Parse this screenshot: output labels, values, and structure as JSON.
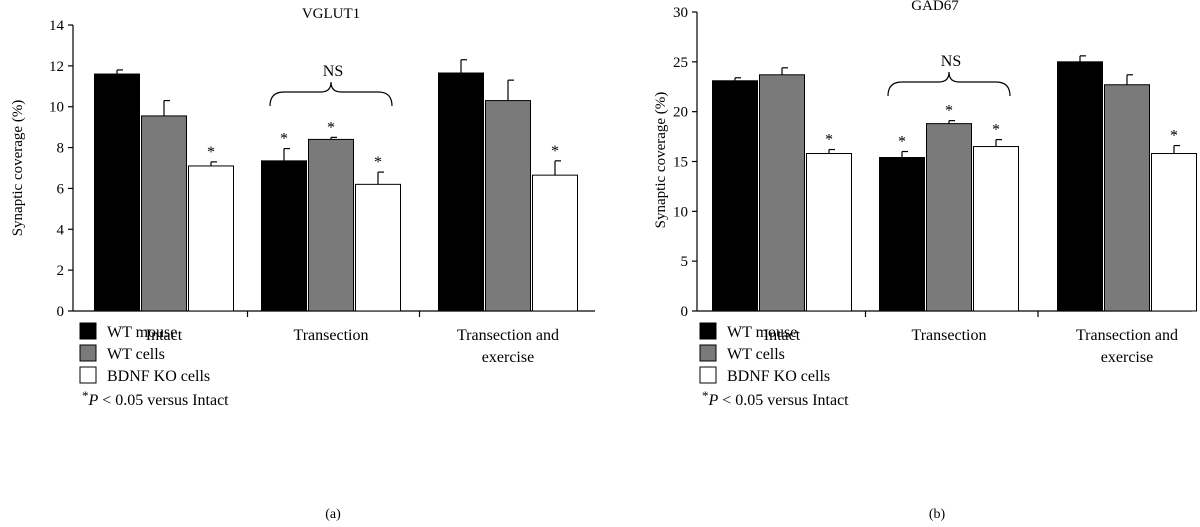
{
  "chart_data": [
    {
      "type": "bar",
      "panel_label": "(a)",
      "title": "VGLUT1",
      "ylabel": "Synaptic coverage (%)",
      "ylim": [
        0,
        14
      ],
      "yticks": [
        0,
        2,
        4,
        6,
        8,
        10,
        12,
        14
      ],
      "categories": [
        [
          "Intact"
        ],
        [
          "Transection"
        ],
        [
          "Transection and",
          "exercise"
        ]
      ],
      "series": [
        {
          "name": "WT mouse",
          "color": "#000000",
          "values": [
            11.6,
            7.35,
            11.65
          ],
          "errors": [
            0.2,
            0.6,
            0.65
          ],
          "stars": [
            false,
            true,
            false
          ]
        },
        {
          "name": "WT cells",
          "color": "#7a7a7a",
          "values": [
            9.55,
            8.4,
            10.3
          ],
          "errors": [
            0.75,
            0.1,
            1.0
          ],
          "stars": [
            false,
            true,
            false
          ]
        },
        {
          "name": "BDNF KO cells",
          "color": "#ffffff",
          "values": [
            7.1,
            6.2,
            6.65
          ],
          "errors": [
            0.2,
            0.6,
            0.7
          ],
          "stars": [
            true,
            true,
            true
          ]
        }
      ],
      "ns_label": "NS",
      "ns_category": 1,
      "star_label": "*"
    },
    {
      "type": "bar",
      "panel_label": "(b)",
      "title": "GAD67",
      "ylabel": "Synaptic coverage (%)",
      "ylim": [
        0,
        30
      ],
      "yticks": [
        0,
        5,
        10,
        15,
        20,
        25,
        30
      ],
      "categories": [
        [
          "Intact"
        ],
        [
          "Transection"
        ],
        [
          "Transection and",
          "exercise"
        ]
      ],
      "series": [
        {
          "name": "WT mouse",
          "color": "#000000",
          "values": [
            23.1,
            15.4,
            25.0
          ],
          "errors": [
            0.3,
            0.6,
            0.6
          ],
          "stars": [
            false,
            true,
            false
          ]
        },
        {
          "name": "WT cells",
          "color": "#7a7a7a",
          "values": [
            23.7,
            18.8,
            22.7
          ],
          "errors": [
            0.7,
            0.3,
            1.0
          ],
          "stars": [
            false,
            true,
            false
          ]
        },
        {
          "name": "BDNF KO cells",
          "color": "#ffffff",
          "values": [
            15.8,
            16.5,
            15.8
          ],
          "errors": [
            0.4,
            0.7,
            0.8
          ],
          "stars": [
            true,
            true,
            true
          ]
        }
      ],
      "ns_label": "NS",
      "ns_category": 1,
      "star_label": "*"
    }
  ],
  "legend": {
    "items": [
      {
        "label": "WT mouse",
        "color": "#000000"
      },
      {
        "label": "WT cells",
        "color": "#7a7a7a"
      },
      {
        "label": "BDNF KO cells",
        "color": "#ffffff"
      }
    ],
    "note_star": "*",
    "note_p": "P",
    "note_rest": " < 0.05 versus Intact"
  }
}
